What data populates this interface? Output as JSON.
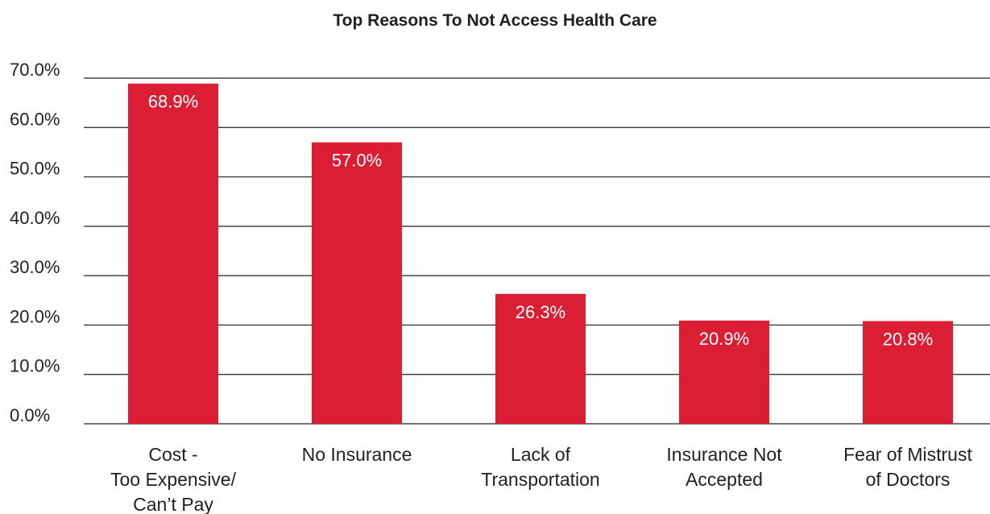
{
  "chart_data": {
    "type": "bar",
    "title": "Top Reasons To Not Access Health Care",
    "categories": [
      [
        "Cost -",
        "Too Expensive/",
        "Can’t Pay"
      ],
      [
        "No Insurance"
      ],
      [
        "Lack of",
        "Transportation"
      ],
      [
        "Insurance Not",
        "Accepted"
      ],
      [
        "Fear of Mistrust",
        "of Doctors"
      ]
    ],
    "values": [
      68.9,
      57.0,
      26.3,
      20.9,
      20.8
    ],
    "data_labels": [
      "68.9%",
      "57.0%",
      "26.3%",
      "20.9%",
      "20.8%"
    ],
    "y_ticks": [
      "0.0%",
      "10.0%",
      "20.0%",
      "30.0%",
      "40.0%",
      "50.0%",
      "60.0%",
      "70.0%"
    ],
    "ylim": [
      0,
      70
    ],
    "grid": true,
    "colors": {
      "bar": "#dc1e35",
      "grid": "#231f20",
      "text": "#231f20",
      "data_label": "#ffffff"
    }
  }
}
